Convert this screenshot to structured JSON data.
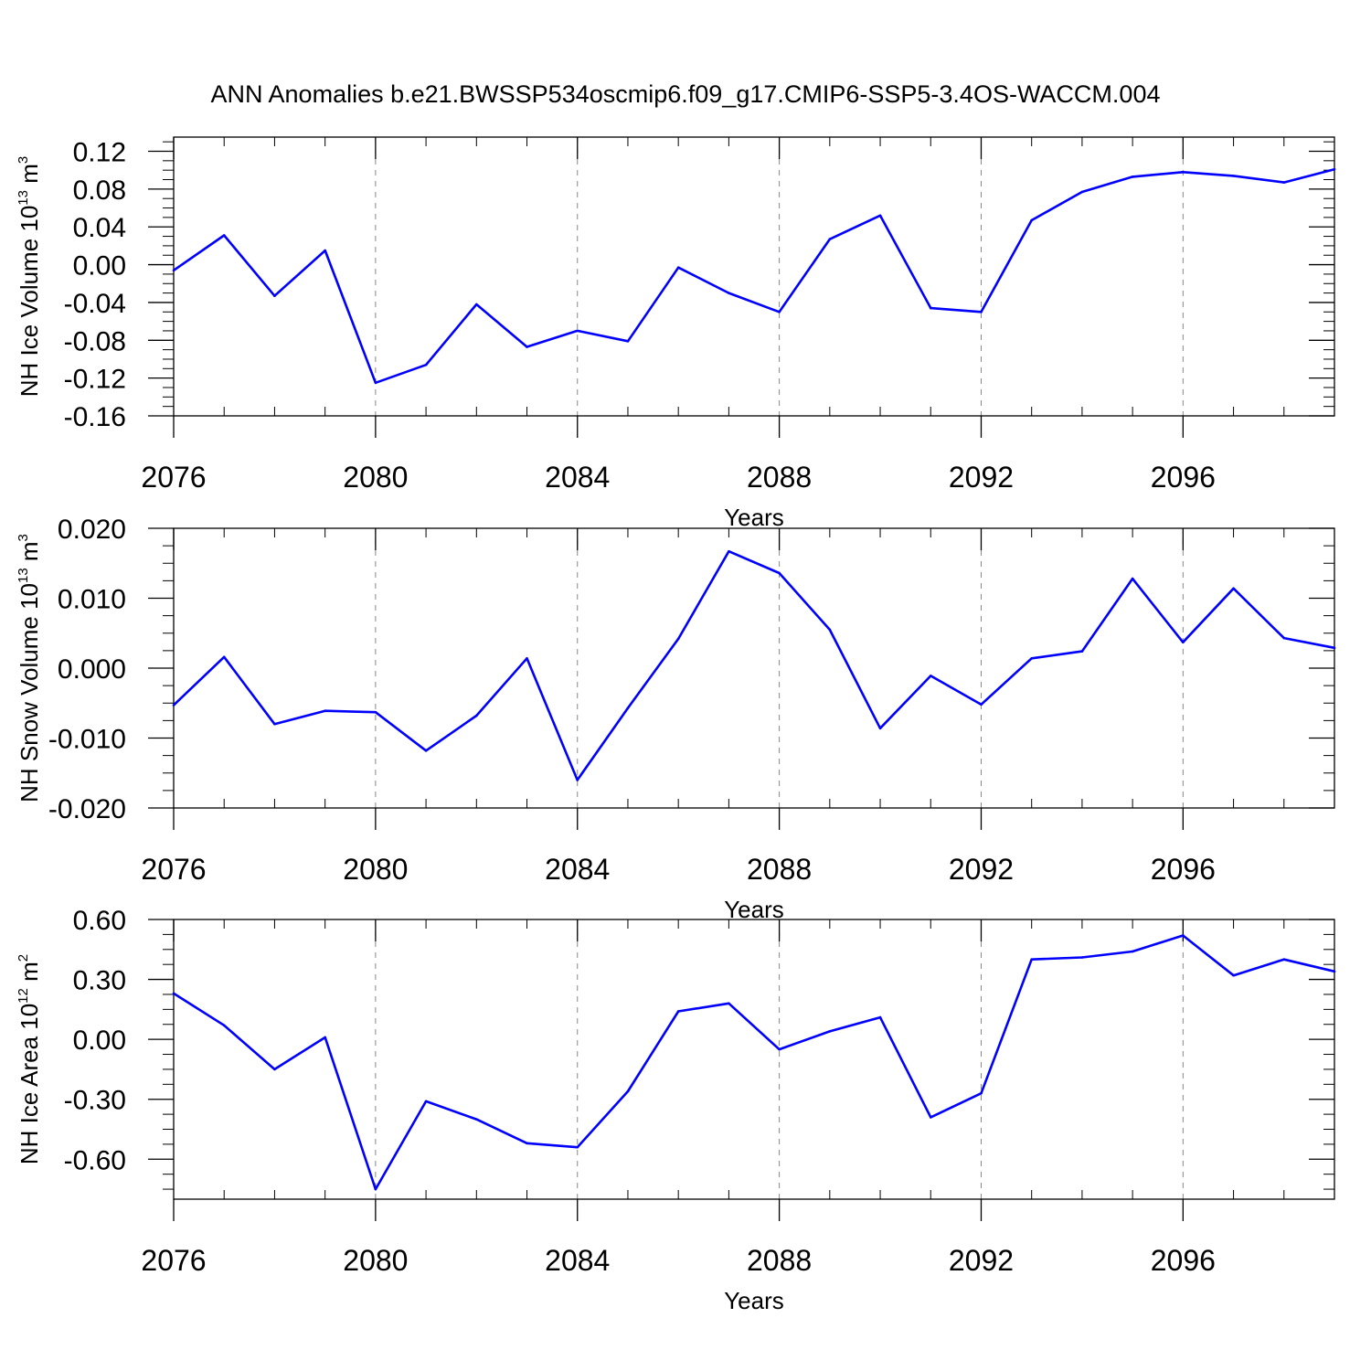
{
  "title": "ANN Anomalies b.e21.BWSSP534oscmip6.f09_g17.CMIP6-SSP5-3.4OS-WACCM.004",
  "line_color": "#0000ff",
  "chart_data": [
    {
      "type": "line",
      "xlabel": "Years",
      "ylabel": {
        "text": "NH Ice Volume 10",
        "exp": "13",
        "unit": " m",
        "unit_exp": "3"
      },
      "xlim": [
        2076,
        2099
      ],
      "ylim": [
        -0.16,
        0.135
      ],
      "xticks": [
        2076,
        2080,
        2084,
        2088,
        2092,
        2096
      ],
      "xtick_labels": [
        "2076",
        "2080",
        "2084",
        "2088",
        "2092",
        "2096"
      ],
      "yticks": [
        -0.16,
        -0.12,
        -0.08,
        -0.04,
        0.0,
        0.04,
        0.08,
        0.12
      ],
      "ytick_labels": [
        "-0.16",
        "-0.12",
        "-0.08",
        "-0.04",
        "0.00",
        "0.04",
        "0.08",
        "0.12"
      ],
      "x": [
        2076,
        2077,
        2078,
        2079,
        2080,
        2081,
        2082,
        2083,
        2084,
        2085,
        2086,
        2087,
        2088,
        2089,
        2090,
        2091,
        2092,
        2093,
        2094,
        2095,
        2096,
        2097,
        2098,
        2099
      ],
      "values": [
        -0.006,
        0.031,
        -0.033,
        0.015,
        -0.125,
        -0.106,
        -0.042,
        -0.087,
        -0.07,
        -0.081,
        -0.003,
        -0.03,
        -0.05,
        0.027,
        0.052,
        -0.046,
        -0.05,
        0.047,
        0.077,
        0.093,
        0.098,
        0.094,
        0.087,
        0.101
      ]
    },
    {
      "type": "line",
      "xlabel": "Years",
      "ylabel": {
        "text": "NH Snow Volume 10",
        "exp": "13",
        "unit": " m",
        "unit_exp": "3"
      },
      "xlim": [
        2076,
        2099
      ],
      "ylim": [
        -0.02,
        0.02
      ],
      "xticks": [
        2076,
        2080,
        2084,
        2088,
        2092,
        2096
      ],
      "xtick_labels": [
        "2076",
        "2080",
        "2084",
        "2088",
        "2092",
        "2096"
      ],
      "yticks": [
        -0.02,
        -0.01,
        0.0,
        0.01,
        0.02
      ],
      "ytick_labels": [
        "-0.020",
        "-0.010",
        "0.000",
        "0.010",
        "0.020"
      ],
      "x": [
        2076,
        2077,
        2078,
        2079,
        2080,
        2081,
        2082,
        2083,
        2084,
        2085,
        2086,
        2087,
        2088,
        2089,
        2090,
        2091,
        2092,
        2093,
        2094,
        2095,
        2096,
        2097,
        2098,
        2099
      ],
      "values": [
        -0.0053,
        0.0016,
        -0.008,
        -0.0061,
        -0.0063,
        -0.0118,
        -0.0068,
        0.0014,
        -0.016,
        -0.0057,
        0.0042,
        0.0167,
        0.0136,
        0.0055,
        -0.0086,
        -0.0011,
        -0.0052,
        0.0014,
        0.0024,
        0.0128,
        0.0037,
        0.0114,
        0.0043,
        0.0029
      ]
    },
    {
      "type": "line",
      "xlabel": "Years",
      "ylabel": {
        "text": "NH Ice Area 10",
        "exp": "12",
        "unit": " m",
        "unit_exp": "2"
      },
      "xlim": [
        2076,
        2099
      ],
      "ylim": [
        -0.8,
        0.6
      ],
      "xticks": [
        2076,
        2080,
        2084,
        2088,
        2092,
        2096
      ],
      "xtick_labels": [
        "2076",
        "2080",
        "2084",
        "2088",
        "2092",
        "2096"
      ],
      "yticks": [
        -0.6,
        -0.3,
        0.0,
        0.3,
        0.6
      ],
      "ytick_labels": [
        "-0.60",
        "-0.30",
        "0.00",
        "0.30",
        "0.60"
      ],
      "x": [
        2076,
        2077,
        2078,
        2079,
        2080,
        2081,
        2082,
        2083,
        2084,
        2085,
        2086,
        2087,
        2088,
        2089,
        2090,
        2091,
        2092,
        2093,
        2094,
        2095,
        2096,
        2097,
        2098,
        2099
      ],
      "values": [
        0.23,
        0.07,
        -0.15,
        0.01,
        -0.75,
        -0.31,
        -0.4,
        -0.52,
        -0.54,
        -0.26,
        0.14,
        0.18,
        -0.05,
        0.04,
        0.11,
        -0.39,
        -0.27,
        0.4,
        0.41,
        0.44,
        0.52,
        0.32,
        0.4,
        0.34
      ]
    }
  ]
}
